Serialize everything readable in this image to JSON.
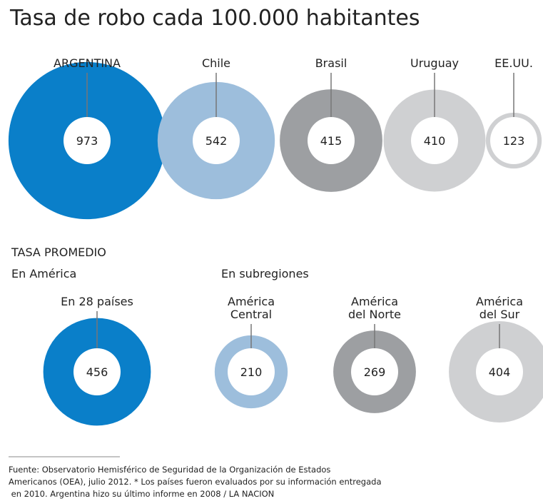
{
  "chart_data": [
    {
      "type": "bubble",
      "title": "Tasa de robo cada 100.000 habitantes",
      "categories": [
        "ARGENTINA",
        "Chile",
        "Brasil",
        "Uruguay",
        "EE.UU."
      ],
      "values": [
        973,
        542,
        415,
        410,
        123
      ],
      "colors": [
        "#0a7fc9",
        "#9dbedc",
        "#9d9fa2",
        "#cfd0d2",
        "#cfd0d2"
      ]
    },
    {
      "type": "bubble",
      "title": "TASA PROMEDIO",
      "subtitles": [
        "En América",
        "En subregiones"
      ],
      "categories": [
        "En 28 países",
        "América\nCentral",
        "América\ndel Norte",
        "América\ndel Sur"
      ],
      "values": [
        456,
        210,
        269,
        404
      ],
      "colors": [
        "#0a7fc9",
        "#9dbedc",
        "#9d9fa2",
        "#cfd0d2"
      ]
    }
  ],
  "footnote": [
    "Fuente: Observatorio Hemisférico de Seguridad de la Organización de Estados",
    "Americanos (OEA), julio 2012. * Los países fueron evaluados por su información entregada",
    " en 2010. Argentina hizo su último informe en 2008 / LA NACION"
  ]
}
